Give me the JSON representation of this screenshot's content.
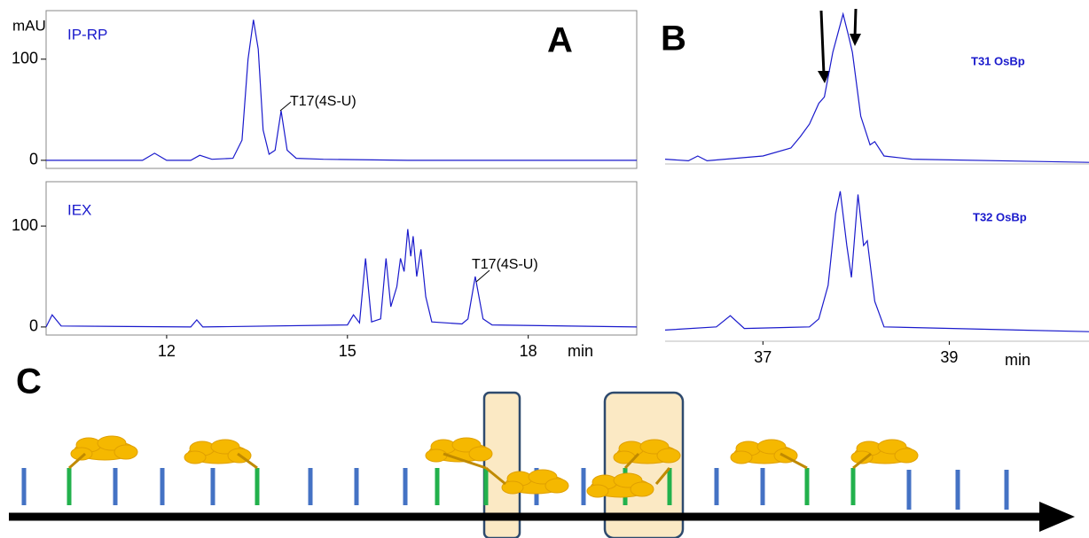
{
  "panel_labels": [
    "A",
    "B",
    "C"
  ],
  "chart_data": [
    {
      "type": "line",
      "y_label": "mAU",
      "annotations": [
        "IP-RP",
        "T17(4S-U)"
      ],
      "xlim": [
        10.0,
        19.8
      ],
      "ylim": [
        -8,
        148
      ],
      "yticks": [
        0,
        100
      ],
      "color": "#1a1acc",
      "x": [
        10.0,
        11.6,
        11.8,
        12.0,
        12.4,
        12.55,
        12.75,
        13.1,
        13.25,
        13.35,
        13.44,
        13.52,
        13.6,
        13.7,
        13.8,
        13.9,
        14.0,
        14.15,
        14.6,
        16.0,
        19.8
      ],
      "values": [
        0,
        0,
        7,
        0,
        0,
        5,
        1,
        2,
        20,
        100,
        139,
        110,
        30,
        6,
        10,
        49,
        10,
        2,
        1,
        0,
        0
      ]
    },
    {
      "type": "line",
      "x_label": "min",
      "annotations": [
        "IEX",
        "T17(4S-U)"
      ],
      "xlim": [
        10.0,
        19.8
      ],
      "ylim": [
        -8,
        144
      ],
      "xticks": [
        12,
        15,
        18
      ],
      "yticks": [
        0,
        100
      ],
      "color": "#1a1acc",
      "x": [
        10.0,
        10.1,
        10.25,
        12.4,
        12.5,
        12.6,
        15.0,
        15.1,
        15.2,
        15.3,
        15.4,
        15.55,
        15.64,
        15.72,
        15.82,
        15.88,
        15.94,
        16.0,
        16.05,
        16.09,
        16.15,
        16.22,
        16.3,
        16.4,
        16.9,
        17.0,
        17.12,
        17.25,
        17.4,
        19.8
      ],
      "values": [
        0,
        12,
        1,
        0,
        7,
        0,
        2,
        12,
        4,
        68,
        5,
        8,
        68,
        20,
        40,
        68,
        55,
        97,
        70,
        90,
        50,
        77,
        30,
        5,
        3,
        8,
        50,
        8,
        2,
        0
      ]
    },
    {
      "type": "line",
      "annotations": [
        "T31 OsBp"
      ],
      "xlim": [
        35.95,
        40.5
      ],
      "ylim": [
        0,
        100
      ],
      "color": "#1a1acc",
      "x": [
        35.95,
        36.2,
        36.3,
        36.4,
        37.0,
        37.3,
        37.4,
        37.5,
        37.6,
        37.66,
        37.75,
        37.86,
        37.92,
        37.96,
        38.05,
        38.15,
        38.2,
        38.3,
        38.6,
        40.5
      ],
      "values": [
        3,
        2,
        5,
        2,
        5,
        10,
        17,
        25,
        38,
        42,
        70,
        94,
        80,
        70,
        30,
        12,
        14,
        5,
        3,
        1
      ]
    },
    {
      "type": "line",
      "x_label": "min",
      "annotations": [
        "T32 OsBp"
      ],
      "xlim": [
        35.95,
        40.5
      ],
      "ylim": [
        0,
        100
      ],
      "xticks": [
        37,
        39
      ],
      "color": "#1a1acc",
      "x": [
        35.95,
        36.5,
        36.65,
        36.8,
        37.5,
        37.6,
        37.7,
        37.78,
        37.83,
        37.9,
        37.95,
        38.02,
        38.08,
        38.12,
        38.2,
        38.3,
        40.5
      ],
      "values": [
        7,
        9,
        16,
        8,
        9,
        14,
        35,
        80,
        94,
        60,
        40,
        92,
        60,
        63,
        25,
        9,
        6
      ]
    }
  ]
}
